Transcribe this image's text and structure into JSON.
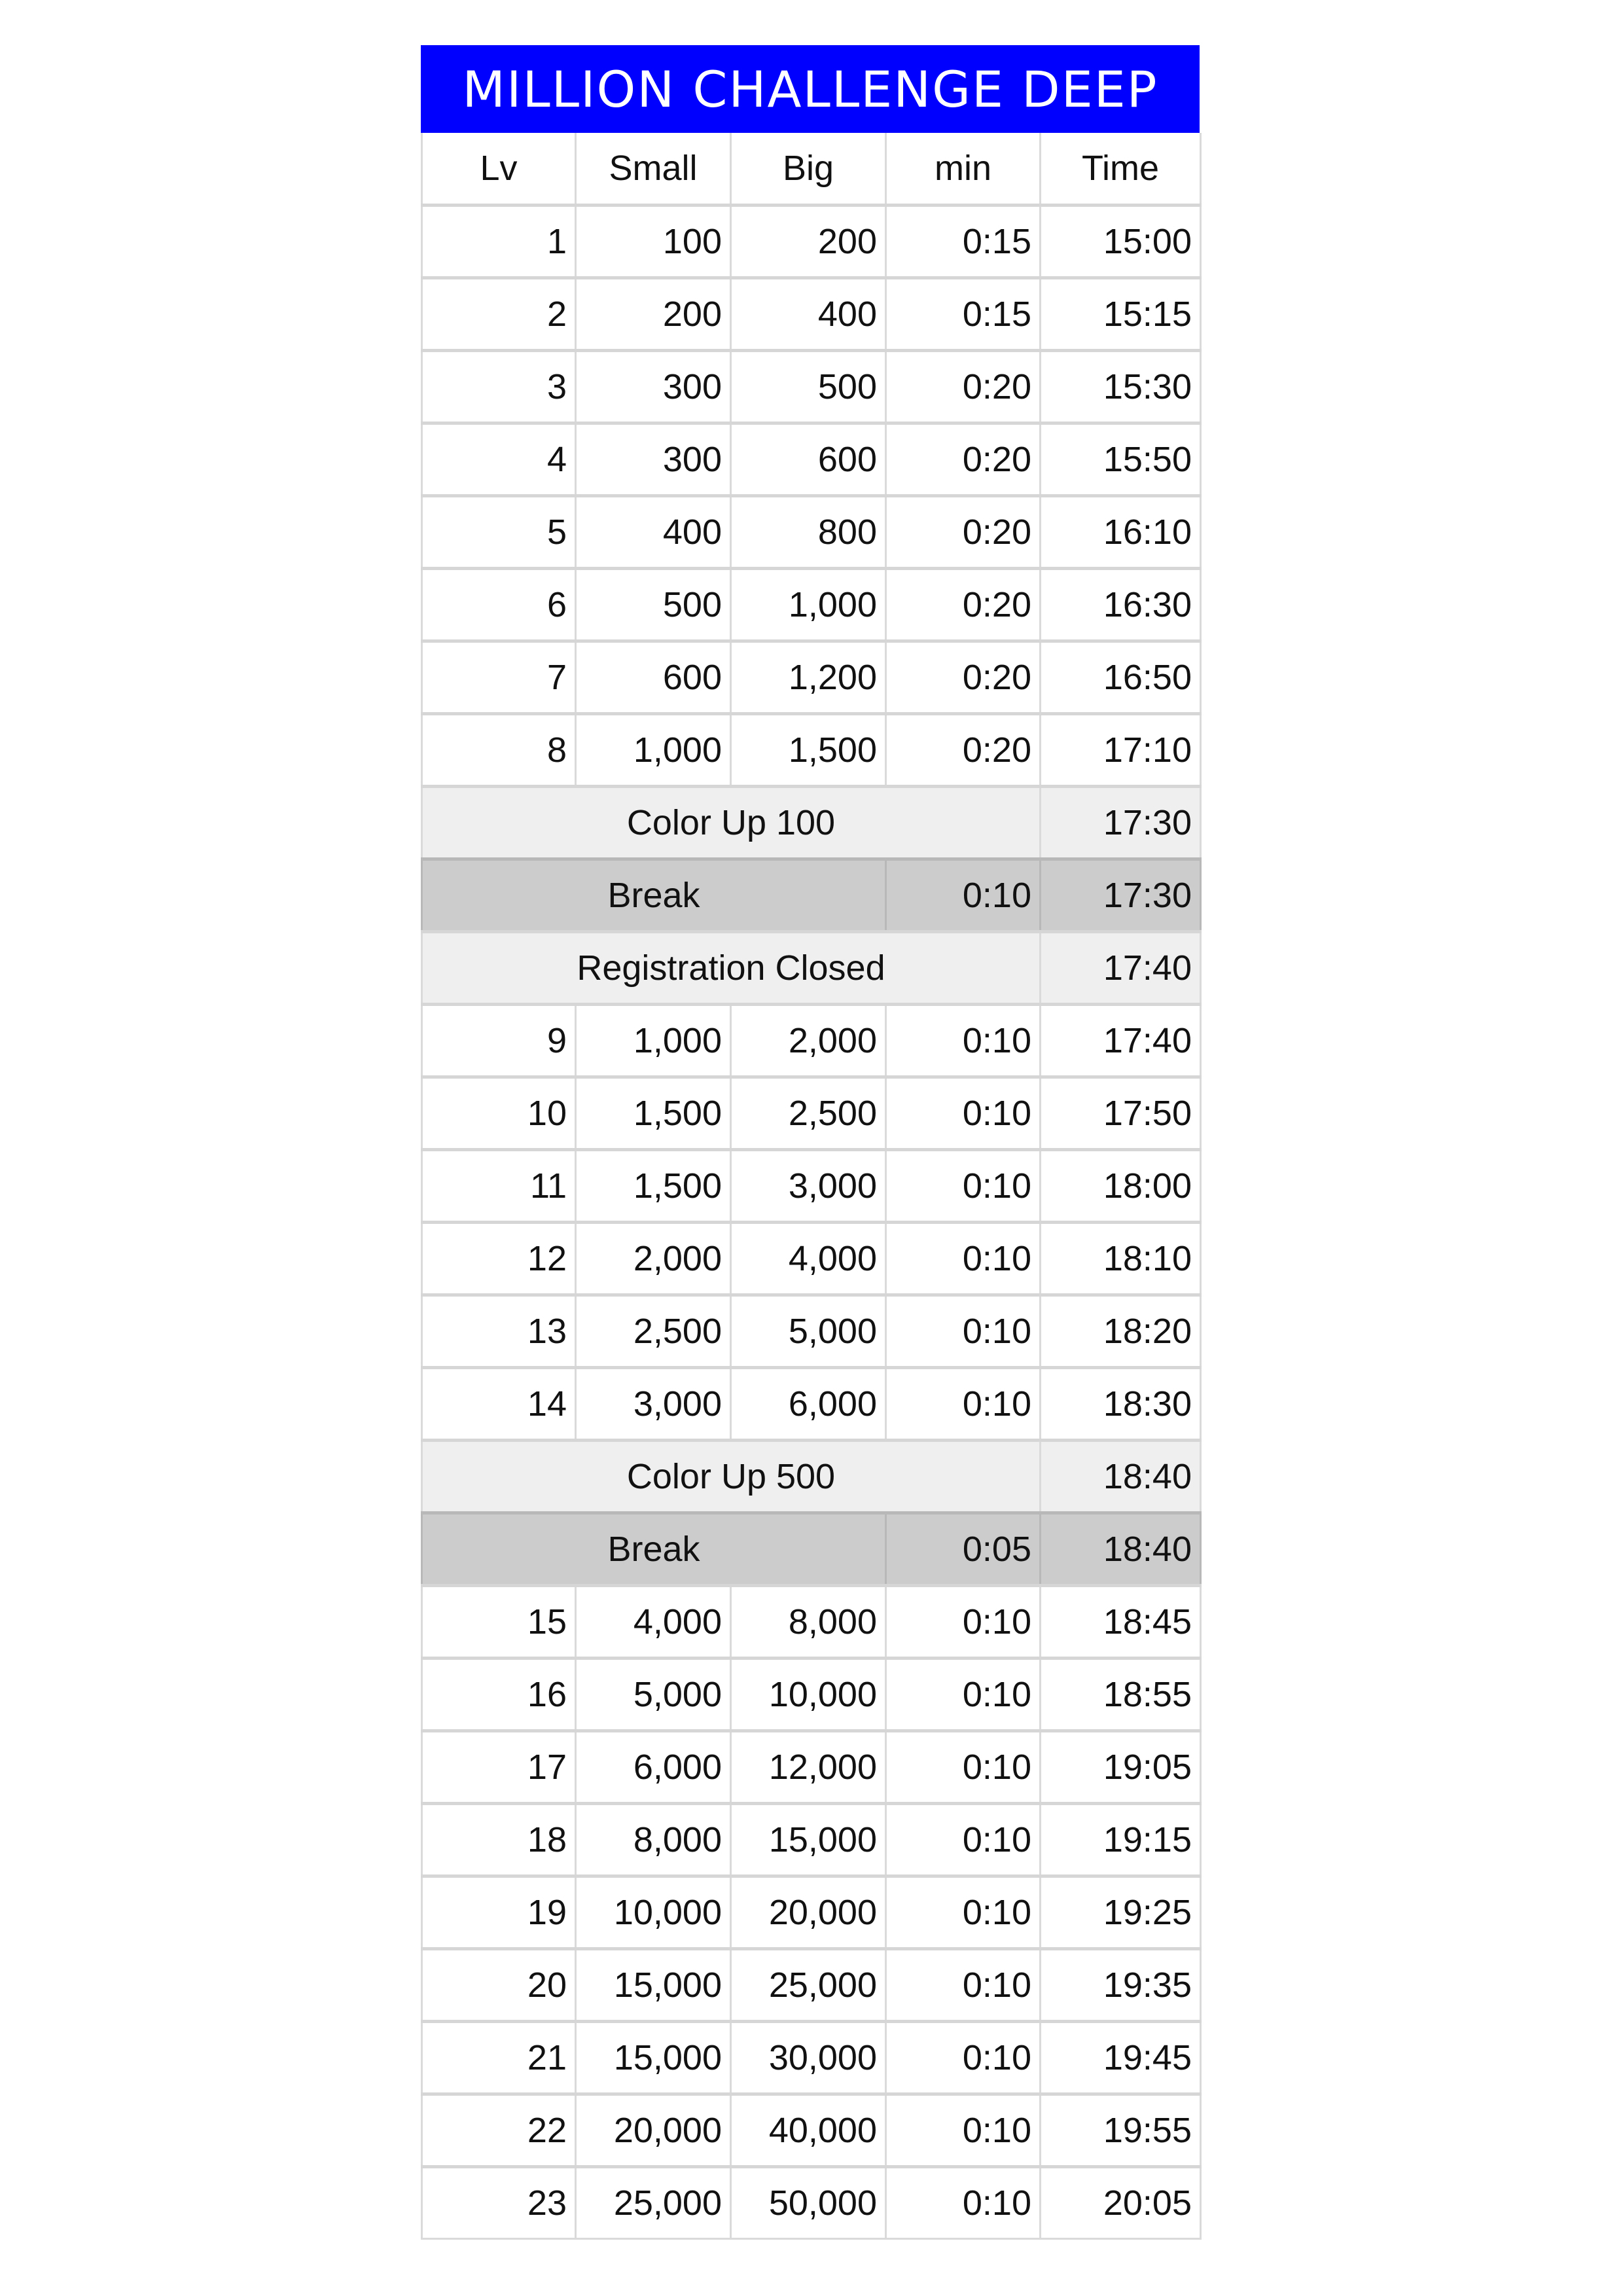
{
  "title": "MILLION CHALLENGE DEEP",
  "colors": {
    "title_bg": "#0000ff",
    "note_bg": "#efefef",
    "break_bg": "#cccccc"
  },
  "headers": [
    "Lv",
    "Small",
    "Big",
    "min",
    "Time"
  ],
  "rows": [
    {
      "type": "level",
      "lv": "1",
      "small": "100",
      "big": "200",
      "min": "0:15",
      "time": "15:00"
    },
    {
      "type": "level",
      "lv": "2",
      "small": "200",
      "big": "400",
      "min": "0:15",
      "time": "15:15"
    },
    {
      "type": "level",
      "lv": "3",
      "small": "300",
      "big": "500",
      "min": "0:20",
      "time": "15:30"
    },
    {
      "type": "level",
      "lv": "4",
      "small": "300",
      "big": "600",
      "min": "0:20",
      "time": "15:50"
    },
    {
      "type": "level",
      "lv": "5",
      "small": "400",
      "big": "800",
      "min": "0:20",
      "time": "16:10"
    },
    {
      "type": "level",
      "lv": "6",
      "small": "500",
      "big": "1,000",
      "min": "0:20",
      "time": "16:30"
    },
    {
      "type": "level",
      "lv": "7",
      "small": "600",
      "big": "1,200",
      "min": "0:20",
      "time": "16:50"
    },
    {
      "type": "level",
      "lv": "8",
      "small": "1,000",
      "big": "1,500",
      "min": "0:20",
      "time": "17:10"
    },
    {
      "type": "note",
      "label": "Color Up 100",
      "time": "17:30"
    },
    {
      "type": "break",
      "label": "Break",
      "min": "0:10",
      "time": "17:30"
    },
    {
      "type": "note",
      "label": "Registration Closed",
      "time": "17:40"
    },
    {
      "type": "level",
      "lv": "9",
      "small": "1,000",
      "big": "2,000",
      "min": "0:10",
      "time": "17:40"
    },
    {
      "type": "level",
      "lv": "10",
      "small": "1,500",
      "big": "2,500",
      "min": "0:10",
      "time": "17:50"
    },
    {
      "type": "level",
      "lv": "11",
      "small": "1,500",
      "big": "3,000",
      "min": "0:10",
      "time": "18:00"
    },
    {
      "type": "level",
      "lv": "12",
      "small": "2,000",
      "big": "4,000",
      "min": "0:10",
      "time": "18:10"
    },
    {
      "type": "level",
      "lv": "13",
      "small": "2,500",
      "big": "5,000",
      "min": "0:10",
      "time": "18:20"
    },
    {
      "type": "level",
      "lv": "14",
      "small": "3,000",
      "big": "6,000",
      "min": "0:10",
      "time": "18:30"
    },
    {
      "type": "note",
      "label": "Color Up 500",
      "time": "18:40"
    },
    {
      "type": "break",
      "label": "Break",
      "min": "0:05",
      "time": "18:40"
    },
    {
      "type": "level",
      "lv": "15",
      "small": "4,000",
      "big": "8,000",
      "min": "0:10",
      "time": "18:45"
    },
    {
      "type": "level",
      "lv": "16",
      "small": "5,000",
      "big": "10,000",
      "min": "0:10",
      "time": "18:55"
    },
    {
      "type": "level",
      "lv": "17",
      "small": "6,000",
      "big": "12,000",
      "min": "0:10",
      "time": "19:05"
    },
    {
      "type": "level",
      "lv": "18",
      "small": "8,000",
      "big": "15,000",
      "min": "0:10",
      "time": "19:15"
    },
    {
      "type": "level",
      "lv": "19",
      "small": "10,000",
      "big": "20,000",
      "min": "0:10",
      "time": "19:25"
    },
    {
      "type": "level",
      "lv": "20",
      "small": "15,000",
      "big": "25,000",
      "min": "0:10",
      "time": "19:35"
    },
    {
      "type": "level",
      "lv": "21",
      "small": "15,000",
      "big": "30,000",
      "min": "0:10",
      "time": "19:45"
    },
    {
      "type": "level",
      "lv": "22",
      "small": "20,000",
      "big": "40,000",
      "min": "0:10",
      "time": "19:55"
    },
    {
      "type": "level",
      "lv": "23",
      "small": "25,000",
      "big": "50,000",
      "min": "0:10",
      "time": "20:05"
    }
  ]
}
